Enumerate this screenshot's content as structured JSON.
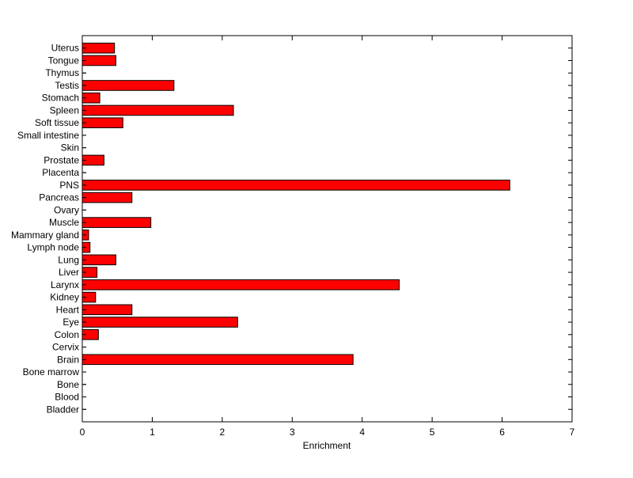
{
  "chart_data": {
    "type": "bar",
    "orientation": "horizontal",
    "title": "",
    "xlabel": "Enrichment",
    "ylabel": "",
    "xlim": [
      0,
      7
    ],
    "xticks": [
      "0",
      "1",
      "2",
      "3",
      "4",
      "5",
      "6",
      "7"
    ],
    "grid": false,
    "bar_color": "#ff0000",
    "categories": [
      "Bladder",
      "Blood",
      "Bone",
      "Bone marrow",
      "Brain",
      "Cervix",
      "Colon",
      "Eye",
      "Heart",
      "Kidney",
      "Larynx",
      "Liver",
      "Lung",
      "Lymph node",
      "Mammary gland",
      "Muscle",
      "Ovary",
      "Pancreas",
      "PNS",
      "Placenta",
      "Prostate",
      "Skin",
      "Small intestine",
      "Soft tissue",
      "Spleen",
      "Stomach",
      "Testis",
      "Thymus",
      "Tongue",
      "Uterus"
    ],
    "values": [
      0,
      0,
      0,
      0,
      3.87,
      0,
      0.23,
      2.22,
      0.71,
      0.19,
      4.53,
      0.21,
      0.48,
      0.11,
      0.09,
      0.98,
      0,
      0.71,
      6.11,
      0,
      0.31,
      0,
      0,
      0.58,
      2.16,
      0.25,
      1.31,
      0,
      0.48,
      0.46
    ]
  }
}
